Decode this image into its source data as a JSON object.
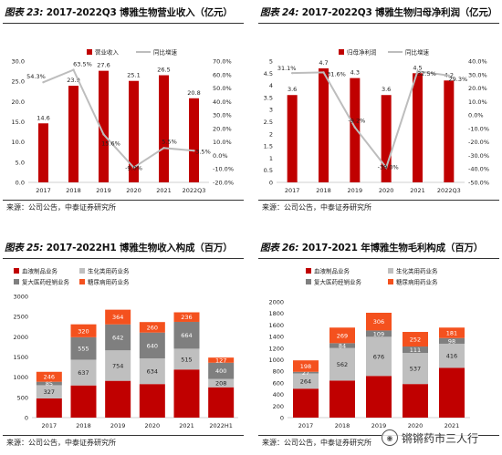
{
  "panels": [
    {
      "label": "图表 23:",
      "title": "2017-2022Q3 博雅生物营业收入（亿元）",
      "source": "来源：公司公告，中泰证券研究所"
    },
    {
      "label": "图表 24:",
      "title": "2017-2022Q3 博雅生物归母净利润（亿元）",
      "source": "来源：公司公告，中泰证券研究所"
    },
    {
      "label": "图表 25:",
      "title": "2017-2022H1 博雅生物收入构成（百万）",
      "source": "来源：公司公告，中泰证券研究所"
    },
    {
      "label": "图表 26:",
      "title": "2017-2021 年博雅生物毛利构成（百万）",
      "source": "来源：公司公告，中泰证券研究所"
    }
  ],
  "watermark": "锵锵药市三人行",
  "colors": {
    "red": "#c00000",
    "gray": "#bfbfbf",
    "dark_gray": "#7f7f7f",
    "orange": "#f4511e",
    "line": "#bdbdbd"
  },
  "chart_data": [
    {
      "type": "bar",
      "categories": [
        "2017",
        "2018",
        "2019",
        "2020",
        "2021",
        "2022Q3"
      ],
      "series": [
        {
          "name": "营业收入",
          "values": [
            14.6,
            23.9,
            27.6,
            25.1,
            26.5,
            20.8
          ],
          "axis": "left"
        },
        {
          "name": "同比增速",
          "type": "line",
          "values": [
            54.3,
            63.5,
            15.6,
            -9.0,
            5.5,
            3.5
          ],
          "axis": "right",
          "unit": "%"
        }
      ],
      "ylim": [
        0,
        30
      ],
      "yticks": [
        "0.0",
        "5.0",
        "10.0",
        "15.0",
        "20.0",
        "25.0",
        "30.0"
      ],
      "y2lim": [
        -20,
        70
      ],
      "y2ticks": [
        "-20.0%",
        "-10.0%",
        "0.0%",
        "10.0%",
        "20.0%",
        "30.0%",
        "40.0%",
        "50.0%",
        "60.0%",
        "70.0%"
      ],
      "legend": "top"
    },
    {
      "type": "bar",
      "categories": [
        "2017",
        "2018",
        "2019",
        "2020",
        "2021",
        "2022Q3"
      ],
      "series": [
        {
          "name": "归母净利润",
          "values": [
            3.6,
            4.7,
            4.3,
            3.6,
            4.5,
            4.2
          ],
          "axis": "left"
        },
        {
          "name": "同比增速",
          "type": "line",
          "values": [
            31.1,
            31.6,
            -9.2,
            -39.0,
            32.5,
            29.3
          ],
          "axis": "right",
          "unit": "%"
        }
      ],
      "ylim": [
        0,
        5
      ],
      "yticks": [
        "0",
        "0.5",
        "1",
        "1.5",
        "2",
        "2.5",
        "3",
        "3.5",
        "4",
        "4.5",
        "5"
      ],
      "y2lim": [
        -50,
        40
      ],
      "y2ticks": [
        "-50.0%",
        "-40.0%",
        "-30.0%",
        "-20.0%",
        "-10.0%",
        "0.0%",
        "10.0%",
        "20.0%",
        "30.0%",
        "40.0%"
      ],
      "legend": "top"
    },
    {
      "type": "bar",
      "stacked": true,
      "categories": [
        "2017",
        "2018",
        "2019",
        "2020",
        "2021",
        "2022H1"
      ],
      "series": [
        {
          "name": "血液制品业务",
          "values": [
            475,
            796,
            910,
            830,
            1190,
            750
          ]
        },
        {
          "name": "生化类用药业务",
          "values": [
            327,
            637,
            754,
            634,
            515,
            208
          ]
        },
        {
          "name": "复大医药经销业务",
          "values": [
            85,
            555,
            642,
            640,
            664,
            400
          ]
        },
        {
          "name": "糖尿病用药业务",
          "values": [
            246,
            320,
            364,
            260,
            236,
            127
          ]
        }
      ],
      "ylim": [
        0,
        3000
      ],
      "yticks": [
        "0",
        "500",
        "1000",
        "1500",
        "2000",
        "2500",
        "3000"
      ],
      "legend": "top"
    },
    {
      "type": "bar",
      "stacked": true,
      "categories": [
        "2017",
        "2018",
        "2019",
        "2020",
        "2021"
      ],
      "series": [
        {
          "name": "血液制品业务",
          "values": [
            500,
            640,
            720,
            580,
            860
          ]
        },
        {
          "name": "生化类用药业务",
          "values": [
            264,
            562,
            676,
            537,
            416
          ]
        },
        {
          "name": "复大医药经销业务",
          "values": [
            27,
            84,
            109,
            111,
            98
          ]
        },
        {
          "name": "糖尿病用药业务",
          "values": [
            198,
            269,
            306,
            252,
            181
          ]
        }
      ],
      "ylim": [
        0,
        2000
      ],
      "yticks": [
        "0",
        "200",
        "400",
        "600",
        "800",
        "1000",
        "1200",
        "1400",
        "1600",
        "1800",
        "2000"
      ],
      "legend": "top"
    }
  ]
}
